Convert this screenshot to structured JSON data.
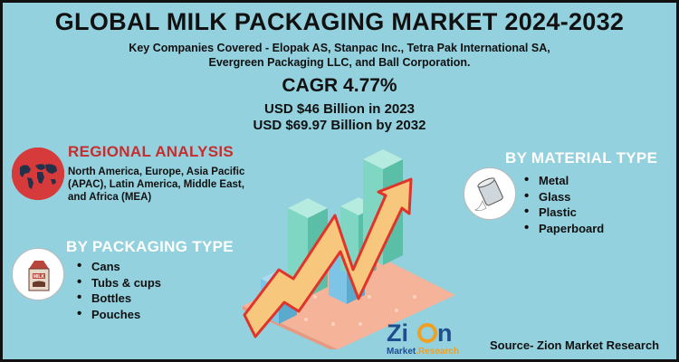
{
  "title": "GLOBAL MILK PACKAGING MARKET 2024-2032",
  "companies_line1": "Key Companies Covered - Elopak AS, Stanpac Inc., Tetra Pak International SA,",
  "companies_line2": "Evergreen Packaging LLC, and Ball Corporation.",
  "cagr": "CAGR 4.77%",
  "value_2023": "USD $46 Billion  in 2023",
  "value_2032": "USD $69.97 Billion  by 2032",
  "regional": {
    "heading": "REGIONAL ANALYSIS",
    "text": "North America, Europe, Asia Pacific (APAC), Latin America, Middle East, and Africa (MEA)",
    "icon": "world-map-icon"
  },
  "packaging": {
    "heading": "BY PACKAGING TYPE",
    "items": [
      "Cans",
      "Tubs & cups",
      "Bottles",
      "Pouches"
    ],
    "icon": "milk-carton-icon"
  },
  "material": {
    "heading": "BY MATERIAL TYPE",
    "items": [
      "Metal",
      "Glass",
      "Plastic",
      "Paperboard"
    ],
    "icon": "milk-can-icon"
  },
  "logo": {
    "brand": "Zion",
    "tagline": "Market Research"
  },
  "source": "Source- Zion Market Research",
  "colors": {
    "background": "#93d1de",
    "heading_red": "#c62d2d",
    "heading_white": "#ffffff",
    "bar_teal": "#7fd6c2",
    "bar_blue": "#7ec4e6",
    "arrow": "#f7c77d",
    "arrow_outline": "#e0342b",
    "platform": "#f5b39a"
  }
}
